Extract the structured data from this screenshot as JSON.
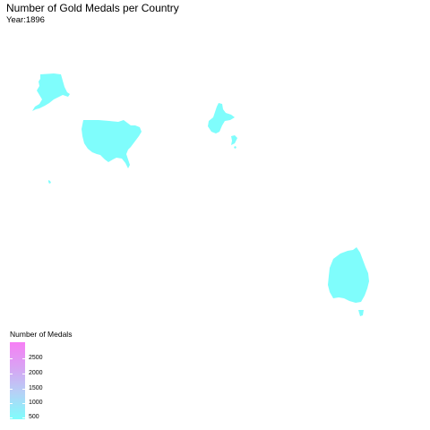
{
  "title": "Number of Gold Medals per Country",
  "subtitle": "Year:1896",
  "colors": {
    "low": "#7ffdfc",
    "mid": "#c5b7f4",
    "high": "#f77ef5"
  },
  "legend": {
    "title": "Number of Medals",
    "ticks": [
      {
        "label": "2500",
        "value": 2500
      },
      {
        "label": "2000",
        "value": 2000
      },
      {
        "label": "1500",
        "value": 1500
      },
      {
        "label": "1000",
        "value": 1000
      },
      {
        "label": "500",
        "value": 500
      }
    ],
    "range": [
      250,
      2700
    ]
  },
  "regions": [
    {
      "name": "alaska",
      "color": "#7ffdfc"
    },
    {
      "name": "contiguous-united-states",
      "color": "#7ffdfc"
    },
    {
      "name": "hawaii",
      "color": "#7ffdfc"
    },
    {
      "name": "greece",
      "color": "#7ffdfc"
    },
    {
      "name": "australia",
      "color": "#7ffdfc"
    },
    {
      "name": "tasmania",
      "color": "#7ffdfc"
    }
  ]
}
